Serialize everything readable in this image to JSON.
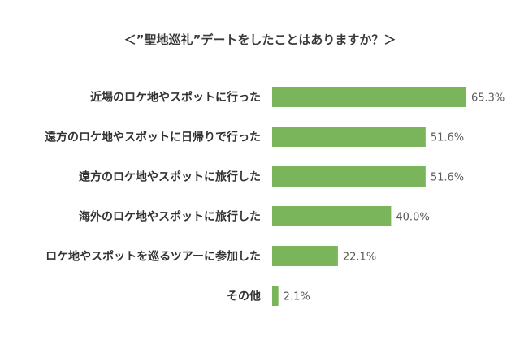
{
  "chart_data": {
    "type": "bar",
    "orientation": "horizontal",
    "title": "＜”聖地巡礼”デートをしたことはありますか？＞",
    "categories": [
      "近場のロケ地やスポットに行った",
      "遠方のロケ地やスポットに日帰りで行った",
      "遠方のロケ地やスポットに旅行した",
      "海外のロケ地やスポットに旅行した",
      "ロケ地やスポットを巡るツアーに参加した",
      "その他"
    ],
    "values": [
      65.3,
      51.6,
      51.6,
      40.0,
      22.1,
      2.1
    ],
    "value_labels": [
      "65.3%",
      "51.6%",
      "51.6%",
      "40.0%",
      "22.1%",
      "2.1%"
    ],
    "unit": "%",
    "xlim": [
      0,
      100
    ],
    "grid": false,
    "legend": "none",
    "bar_color": "#7ab55c"
  }
}
